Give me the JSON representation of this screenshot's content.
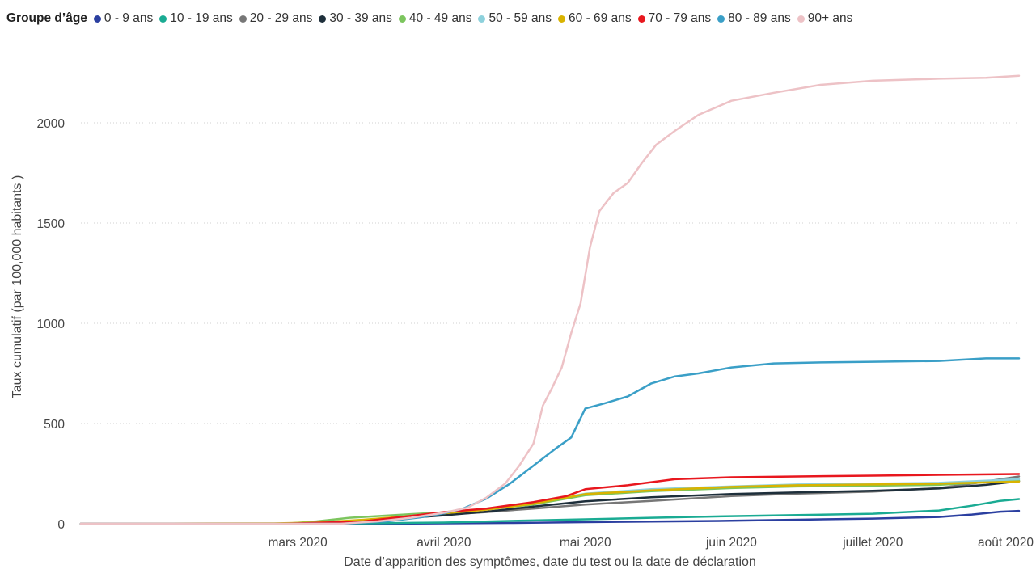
{
  "chart_data": {
    "type": "line",
    "legend_title": "Groupe d’âge",
    "xlabel": "Date d’apparition des symptômes, date du test ou la date de déclaration",
    "ylabel": "Taux cumulatif (par 100,000 habitants )",
    "ylim": [
      0,
      2250
    ],
    "yticks": [
      0,
      500,
      1000,
      1500,
      2000
    ],
    "xlim": [
      "2020-01-15",
      "2020-08-01"
    ],
    "xticks": [
      {
        "date": "2020-03-01",
        "label": "mars 2020"
      },
      {
        "date": "2020-04-01",
        "label": "avril 2020"
      },
      {
        "date": "2020-05-01",
        "label": "mai 2020"
      },
      {
        "date": "2020-06-01",
        "label": "juin 2020"
      },
      {
        "date": "2020-07-01",
        "label": "juillet 2020"
      },
      {
        "date": "2020-08-01",
        "label": "août 2020"
      }
    ],
    "grid": "horizontal-dotted",
    "legend_position": "top",
    "series": [
      {
        "name": "0 - 9 ans",
        "color": "#2b3fa0",
        "points": [
          [
            "2020-01-15",
            0
          ],
          [
            "2020-02-25",
            0
          ],
          [
            "2020-03-25",
            1
          ],
          [
            "2020-04-15",
            4
          ],
          [
            "2020-05-01",
            8
          ],
          [
            "2020-05-15",
            11
          ],
          [
            "2020-06-01",
            15
          ],
          [
            "2020-06-15",
            20
          ],
          [
            "2020-07-01",
            26
          ],
          [
            "2020-07-15",
            34
          ],
          [
            "2020-07-22",
            46
          ],
          [
            "2020-07-28",
            60
          ],
          [
            "2020-08-01",
            64
          ]
        ]
      },
      {
        "name": "10 - 19 ans",
        "color": "#1aab93",
        "points": [
          [
            "2020-01-15",
            0
          ],
          [
            "2020-02-25",
            0
          ],
          [
            "2020-03-15",
            2
          ],
          [
            "2020-04-01",
            6
          ],
          [
            "2020-04-15",
            14
          ],
          [
            "2020-05-01",
            22
          ],
          [
            "2020-05-15",
            30
          ],
          [
            "2020-06-01",
            38
          ],
          [
            "2020-06-15",
            43
          ],
          [
            "2020-07-01",
            50
          ],
          [
            "2020-07-15",
            66
          ],
          [
            "2020-07-22",
            90
          ],
          [
            "2020-07-28",
            114
          ],
          [
            "2020-08-01",
            123
          ]
        ]
      },
      {
        "name": "20 - 29 ans",
        "color": "#777777",
        "points": [
          [
            "2020-01-15",
            0
          ],
          [
            "2020-02-28",
            0
          ],
          [
            "2020-03-10",
            6
          ],
          [
            "2020-03-20",
            20
          ],
          [
            "2020-04-01",
            45
          ],
          [
            "2020-04-10",
            58
          ],
          [
            "2020-04-20",
            76
          ],
          [
            "2020-05-01",
            96
          ],
          [
            "2020-05-15",
            114
          ],
          [
            "2020-06-01",
            138
          ],
          [
            "2020-06-15",
            150
          ],
          [
            "2020-07-01",
            160
          ],
          [
            "2020-07-15",
            178
          ],
          [
            "2020-07-22",
            200
          ],
          [
            "2020-08-01",
            236
          ]
        ]
      },
      {
        "name": "30 - 39 ans",
        "color": "#1e2f3b",
        "points": [
          [
            "2020-01-15",
            0
          ],
          [
            "2020-02-28",
            0
          ],
          [
            "2020-03-10",
            6
          ],
          [
            "2020-03-20",
            22
          ],
          [
            "2020-04-01",
            42
          ],
          [
            "2020-04-10",
            60
          ],
          [
            "2020-04-20",
            86
          ],
          [
            "2020-05-01",
            112
          ],
          [
            "2020-05-15",
            132
          ],
          [
            "2020-06-01",
            148
          ],
          [
            "2020-06-15",
            156
          ],
          [
            "2020-07-01",
            164
          ],
          [
            "2020-07-15",
            176
          ],
          [
            "2020-07-25",
            194
          ],
          [
            "2020-08-01",
            212
          ]
        ]
      },
      {
        "name": "40 - 49 ans",
        "color": "#7cc55e",
        "points": [
          [
            "2020-01-15",
            0
          ],
          [
            "2020-02-27",
            0
          ],
          [
            "2020-03-05",
            12
          ],
          [
            "2020-03-12",
            30
          ],
          [
            "2020-03-25",
            48
          ],
          [
            "2020-04-05",
            62
          ],
          [
            "2020-04-20",
            96
          ],
          [
            "2020-05-01",
            142
          ],
          [
            "2020-05-15",
            162
          ],
          [
            "2020-06-01",
            178
          ],
          [
            "2020-06-15",
            186
          ],
          [
            "2020-07-01",
            190
          ],
          [
            "2020-07-15",
            194
          ],
          [
            "2020-08-01",
            216
          ]
        ]
      },
      {
        "name": "50 - 59 ans",
        "color": "#8dd1dc",
        "points": [
          [
            "2020-01-15",
            0
          ],
          [
            "2020-02-28",
            0
          ],
          [
            "2020-03-10",
            8
          ],
          [
            "2020-03-20",
            28
          ],
          [
            "2020-04-01",
            56
          ],
          [
            "2020-04-10",
            74
          ],
          [
            "2020-04-20",
            104
          ],
          [
            "2020-05-01",
            150
          ],
          [
            "2020-05-15",
            172
          ],
          [
            "2020-06-01",
            186
          ],
          [
            "2020-06-15",
            196
          ],
          [
            "2020-07-01",
            200
          ],
          [
            "2020-07-15",
            204
          ],
          [
            "2020-08-01",
            222
          ]
        ]
      },
      {
        "name": "60 - 69 ans",
        "color": "#d9b300",
        "points": [
          [
            "2020-01-15",
            0
          ],
          [
            "2020-02-25",
            2
          ],
          [
            "2020-03-05",
            6
          ],
          [
            "2020-03-15",
            20
          ],
          [
            "2020-04-01",
            52
          ],
          [
            "2020-04-10",
            70
          ],
          [
            "2020-04-20",
            100
          ],
          [
            "2020-05-01",
            148
          ],
          [
            "2020-05-15",
            166
          ],
          [
            "2020-06-01",
            184
          ],
          [
            "2020-06-15",
            192
          ],
          [
            "2020-07-01",
            196
          ],
          [
            "2020-07-15",
            200
          ],
          [
            "2020-08-01",
            210
          ]
        ]
      },
      {
        "name": "70 - 79 ans",
        "color": "#e8171e",
        "points": [
          [
            "2020-01-15",
            0
          ],
          [
            "2020-02-26",
            0
          ],
          [
            "2020-03-01",
            2
          ],
          [
            "2020-03-15",
            12
          ],
          [
            "2020-04-01",
            58
          ],
          [
            "2020-04-10",
            76
          ],
          [
            "2020-04-20",
            108
          ],
          [
            "2020-04-27",
            138
          ],
          [
            "2020-05-01",
            172
          ],
          [
            "2020-05-10",
            192
          ],
          [
            "2020-05-20",
            222
          ],
          [
            "2020-06-01",
            232
          ],
          [
            "2020-06-15",
            236
          ],
          [
            "2020-07-01",
            240
          ],
          [
            "2020-07-15",
            244
          ],
          [
            "2020-08-01",
            248
          ]
        ]
      },
      {
        "name": "80 - 89 ans",
        "color": "#3a9fc7",
        "points": [
          [
            "2020-01-15",
            0
          ],
          [
            "2020-03-10",
            0
          ],
          [
            "2020-03-20",
            12
          ],
          [
            "2020-03-27",
            32
          ],
          [
            "2020-04-01",
            52
          ],
          [
            "2020-04-05",
            75
          ],
          [
            "2020-04-10",
            125
          ],
          [
            "2020-04-15",
            200
          ],
          [
            "2020-04-20",
            290
          ],
          [
            "2020-04-25",
            380
          ],
          [
            "2020-04-28",
            430
          ],
          [
            "2020-05-01",
            575
          ],
          [
            "2020-05-05",
            600
          ],
          [
            "2020-05-10",
            635
          ],
          [
            "2020-05-15",
            700
          ],
          [
            "2020-05-20",
            735
          ],
          [
            "2020-05-25",
            750
          ],
          [
            "2020-06-01",
            780
          ],
          [
            "2020-06-10",
            800
          ],
          [
            "2020-06-20",
            805
          ],
          [
            "2020-07-01",
            808
          ],
          [
            "2020-07-15",
            812
          ],
          [
            "2020-07-25",
            825
          ],
          [
            "2020-08-01",
            825
          ]
        ]
      },
      {
        "name": "90+ ans",
        "color": "#edc2c6",
        "points": [
          [
            "2020-01-15",
            0
          ],
          [
            "2020-03-10",
            0
          ],
          [
            "2020-03-18",
            12
          ],
          [
            "2020-03-25",
            30
          ],
          [
            "2020-04-01",
            55
          ],
          [
            "2020-04-06",
            80
          ],
          [
            "2020-04-10",
            130
          ],
          [
            "2020-04-14",
            200
          ],
          [
            "2020-04-17",
            290
          ],
          [
            "2020-04-20",
            400
          ],
          [
            "2020-04-22",
            590
          ],
          [
            "2020-04-24",
            680
          ],
          [
            "2020-04-26",
            780
          ],
          [
            "2020-04-28",
            950
          ],
          [
            "2020-04-30",
            1100
          ],
          [
            "2020-05-02",
            1380
          ],
          [
            "2020-05-04",
            1560
          ],
          [
            "2020-05-07",
            1650
          ],
          [
            "2020-05-10",
            1700
          ],
          [
            "2020-05-13",
            1800
          ],
          [
            "2020-05-16",
            1890
          ],
          [
            "2020-05-20",
            1960
          ],
          [
            "2020-05-25",
            2040
          ],
          [
            "2020-06-01",
            2110
          ],
          [
            "2020-06-10",
            2150
          ],
          [
            "2020-06-20",
            2190
          ],
          [
            "2020-07-01",
            2210
          ],
          [
            "2020-07-15",
            2220
          ],
          [
            "2020-07-25",
            2225
          ],
          [
            "2020-08-01",
            2235
          ]
        ]
      }
    ]
  }
}
